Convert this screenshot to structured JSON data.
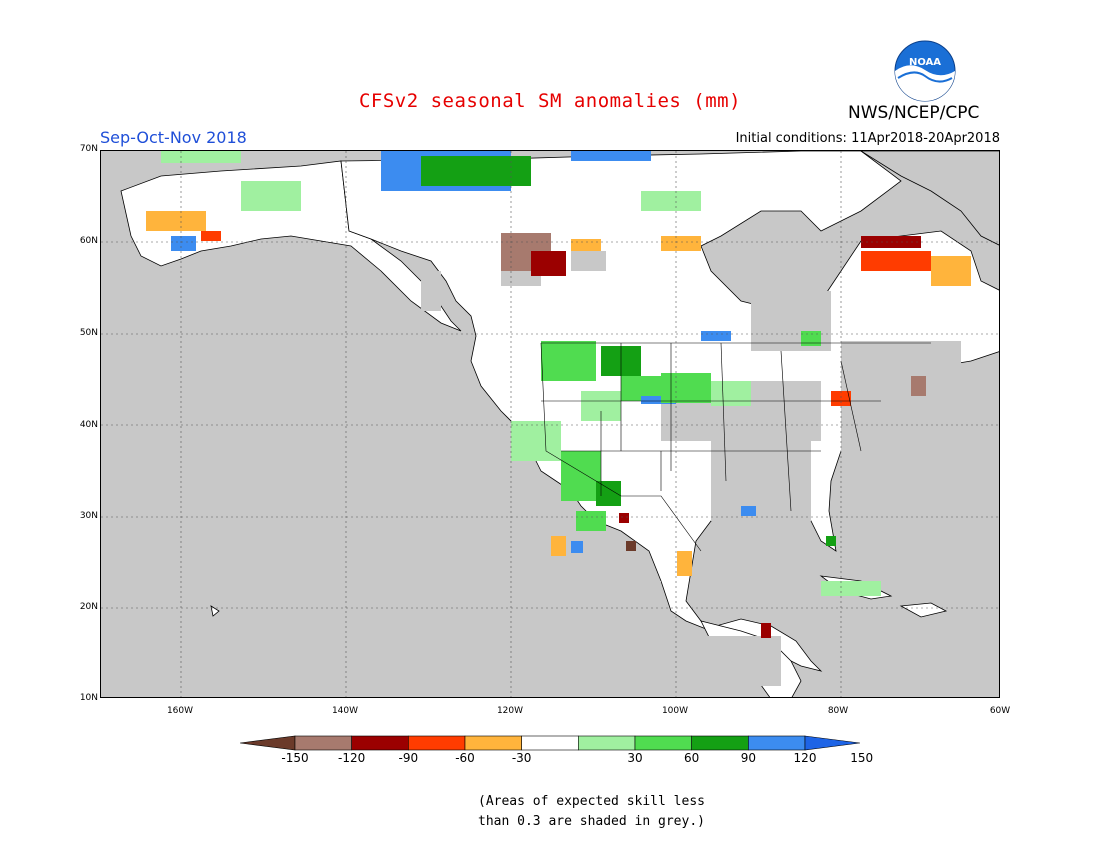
{
  "title": "CFSv2 seasonal SM anomalies (mm)",
  "season": "Sep-Oct-Nov 2018",
  "initial_conditions": "Initial conditions: 11Apr2018-20Apr2018",
  "agency": "NWS/NCEP/CPC",
  "logo_text": "NOAA",
  "lat_labels": [
    "70N",
    "60N",
    "50N",
    "40N",
    "30N",
    "20N",
    "10N"
  ],
  "lon_labels": [
    "160W",
    "140W",
    "120W",
    "100W",
    "80W",
    "60W"
  ],
  "colorbar": {
    "labels": [
      "-150",
      "-120",
      "-90",
      "-60",
      "-30",
      "30",
      "60",
      "90",
      "120",
      "150"
    ],
    "colors": [
      "#6b3a2a",
      "#a77a6e",
      "#9b0000",
      "#ff3c00",
      "#ffb43c",
      "#ffffff",
      "#a0f0a0",
      "#50dc50",
      "#14a014",
      "#3c8cf0",
      "#1e64e6"
    ]
  },
  "note_lines": [
    "(Areas of expected skill less",
    "than 0.3 are shaded in grey.)"
  ],
  "colors": {
    "ocean": "#c8c8c8",
    "land_neutral": "#ffffff",
    "title": "#e60000",
    "season": "#1f4fd8"
  }
}
